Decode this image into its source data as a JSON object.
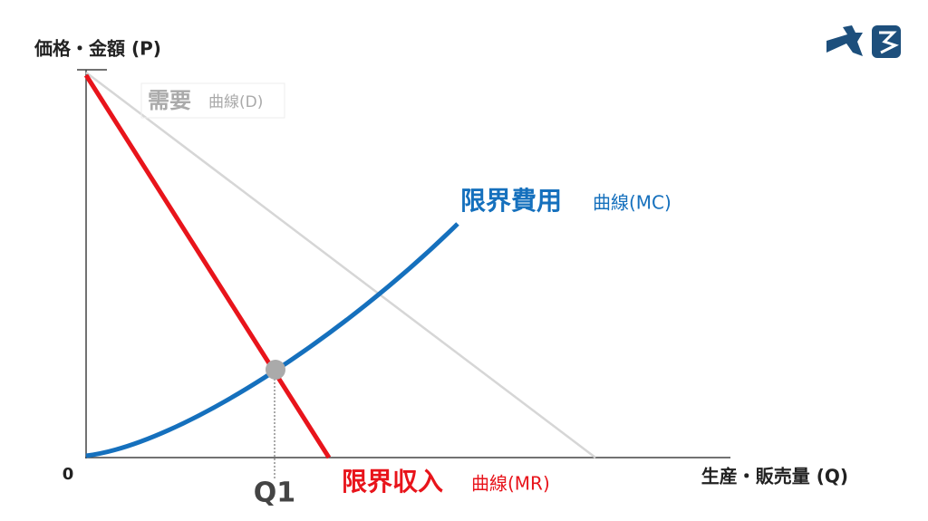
{
  "axes": {
    "y_label": "価格・金額 (P)",
    "x_label": "生産・販売量 (Q)",
    "origin": "0"
  },
  "curves": [
    {
      "name": "需要",
      "suffix": "曲線(D)"
    },
    {
      "name": "限界費用",
      "suffix": "曲線(MC)"
    },
    {
      "name": "限界収入",
      "suffix": "曲線(MR)"
    }
  ],
  "equilibrium": {
    "label": "Q1"
  }
}
